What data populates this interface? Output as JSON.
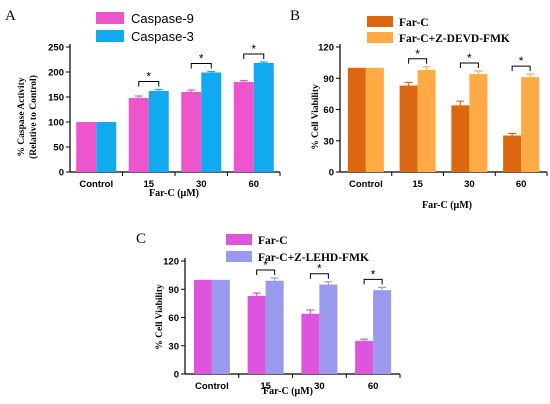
{
  "chart_data": [
    {
      "panel": "A",
      "type": "bar",
      "categories": [
        "Control",
        "15",
        "30",
        "60"
      ],
      "series": [
        {
          "name": "Caspase-9",
          "color": "#ee55cc",
          "values": [
            100,
            148,
            160,
            180
          ],
          "errors": [
            0,
            4,
            4,
            3
          ]
        },
        {
          "name": "Caspase-3",
          "color": "#11aaee",
          "values": [
            100,
            162,
            199,
            218
          ],
          "errors": [
            0,
            3,
            2,
            2
          ]
        }
      ],
      "significance": [
        "",
        "*",
        "*",
        "*"
      ],
      "xlabel": "Far-C (μM)",
      "ylabel": "% Caspase Activity (Relative to Control)",
      "ylabel_lines": [
        "% Caspase Activity",
        "(Relative to Control)"
      ],
      "ylim": [
        0,
        250
      ],
      "yticks": [
        0,
        50,
        100,
        150,
        200,
        250
      ],
      "legend": "top-left",
      "grid": false
    },
    {
      "panel": "B",
      "type": "bar",
      "categories": [
        "Control",
        "15",
        "30",
        "60"
      ],
      "series": [
        {
          "name": "Far-C",
          "color": "#dd6611",
          "values": [
            100,
            83,
            64,
            35
          ],
          "errors": [
            0,
            3,
            4,
            2
          ]
        },
        {
          "name": "Far-C+Z-DEVD-FMK",
          "color": "#ffaa44",
          "values": [
            100,
            98,
            94,
            91
          ],
          "errors": [
            0,
            3,
            3,
            3
          ]
        }
      ],
      "significance": [
        "",
        "*",
        "*",
        "*"
      ],
      "xlabel": "Far-C (μM)",
      "ylabel": "% Cell Viability",
      "ylim": [
        0,
        120
      ],
      "yticks": [
        0,
        30,
        60,
        90,
        120
      ],
      "legend": "top-left",
      "grid": false
    },
    {
      "panel": "C",
      "type": "bar",
      "categories": [
        "Control",
        "15",
        "30",
        "60"
      ],
      "series": [
        {
          "name": "Far-C",
          "color": "#dd55dd",
          "values": [
            100,
            83,
            64,
            35
          ],
          "errors": [
            0,
            3,
            4,
            2
          ]
        },
        {
          "name": "Far-C+Z-LEHD-FMK",
          "color": "#9999ee",
          "values": [
            100,
            99,
            95,
            89
          ],
          "errors": [
            0,
            3,
            3,
            3
          ]
        }
      ],
      "significance": [
        "",
        "*",
        "*",
        "*"
      ],
      "xlabel": "Far-C (μM)",
      "ylabel": "% Cell Viability",
      "ylim": [
        0,
        120
      ],
      "yticks": [
        0,
        30,
        60,
        90,
        120
      ],
      "legend": "top-left",
      "grid": false
    }
  ]
}
